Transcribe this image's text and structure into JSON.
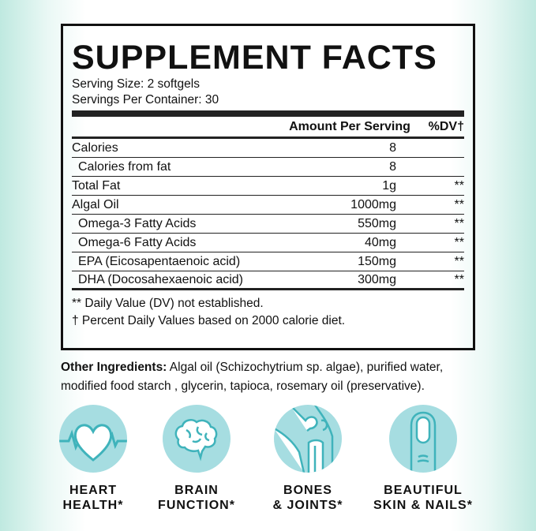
{
  "title": "SUPPLEMENT FACTS",
  "serving_size": "Serving Size: 2 softgels",
  "servings_per_container": "Servings Per Container: 30",
  "header": {
    "amount": "Amount Per Serving",
    "dv": "%DV†"
  },
  "rows": [
    {
      "name": "Calories",
      "amount": "8",
      "dv": "",
      "indent": false
    },
    {
      "name": "Calories from fat",
      "amount": "8",
      "dv": "",
      "indent": true
    },
    {
      "name": "Total Fat",
      "amount": "1g",
      "dv": "**",
      "indent": false
    },
    {
      "name": "Algal Oil",
      "amount": "1000mg",
      "dv": "**",
      "indent": false
    },
    {
      "name": "Omega-3 Fatty Acids",
      "amount": "550mg",
      "dv": "**",
      "indent": true
    },
    {
      "name": "Omega-6 Fatty Acids",
      "amount": "40mg",
      "dv": "**",
      "indent": true
    },
    {
      "name": "EPA (Eicosapentaenoic acid)",
      "amount": "150mg",
      "dv": "**",
      "indent": true
    },
    {
      "name": "DHA (Docosahexaenoic acid)",
      "amount": "300mg",
      "dv": "**",
      "indent": true
    }
  ],
  "footnotes": [
    "** Daily Value (DV) not established.",
    "† Percent Daily Values based on 2000 calorie diet."
  ],
  "other_ingredients": {
    "label": "Other Ingredients:",
    "text": " Algal oil (Schizochytrium sp. algae), purified water, modified food starch , glycerin, tapioca, rosemary oil (preservative)."
  },
  "benefits": [
    {
      "icon": "heart-icon",
      "line1": "HEART",
      "line2": "HEALTH*"
    },
    {
      "icon": "brain-icon",
      "line1": "BRAIN",
      "line2": "FUNCTION*"
    },
    {
      "icon": "knee-joint-icon",
      "line1": "BONES",
      "line2": "& JOINTS*"
    },
    {
      "icon": "fingernail-icon",
      "line1": "BEAUTIFUL",
      "line2": "SKIN & NAILS*"
    }
  ],
  "colors": {
    "icon_bg": "#a6dde1",
    "icon_stroke": "#3fb3bb",
    "border": "#111111"
  }
}
